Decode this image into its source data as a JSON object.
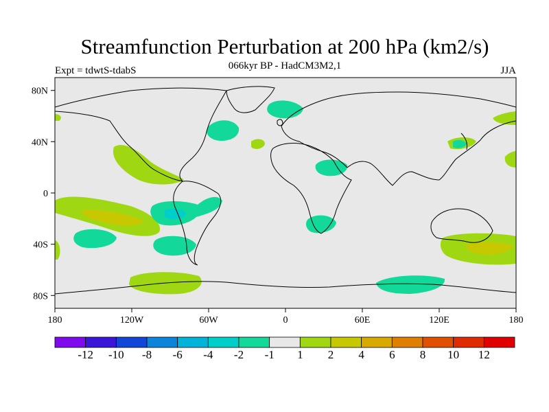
{
  "title": "Streamfunction Perturbation at 200 hPa (km2/s)",
  "subtitle": "066kyr BP - HadCM3M2,1",
  "left_label": "Expt = tdwtS-tdabS",
  "right_label": "JJA",
  "y_axis": {
    "labels": [
      "80N",
      "40N",
      "0",
      "40S",
      "80S"
    ],
    "values": [
      80,
      40,
      0,
      -40,
      -80
    ]
  },
  "x_axis": {
    "labels": [
      "180",
      "120W",
      "60W",
      "0",
      "60E",
      "120E",
      "180"
    ],
    "values": [
      -180,
      -120,
      -60,
      0,
      60,
      120,
      180
    ]
  },
  "colorbar": {
    "colors": [
      "#7f0aed",
      "#3a16d9",
      "#1246d8",
      "#0c84dc",
      "#00b3d8",
      "#00cfc9",
      "#12d99a",
      "#e8e8e8",
      "#9fd812",
      "#c8c800",
      "#d8aa00",
      "#de7f00",
      "#e05000",
      "#e02a00",
      "#e00000"
    ],
    "labels": [
      "-12",
      "-10",
      "-8",
      "-6",
      "-4",
      "-2",
      "-1",
      "1",
      "2",
      "4",
      "6",
      "8",
      "10",
      "12"
    ]
  },
  "colors": {
    "background": "#e8e8e8",
    "neg1": "#12d99a",
    "neg2": "#00cfc9",
    "pos1": "#9fd812",
    "pos2": "#c8c800"
  }
}
